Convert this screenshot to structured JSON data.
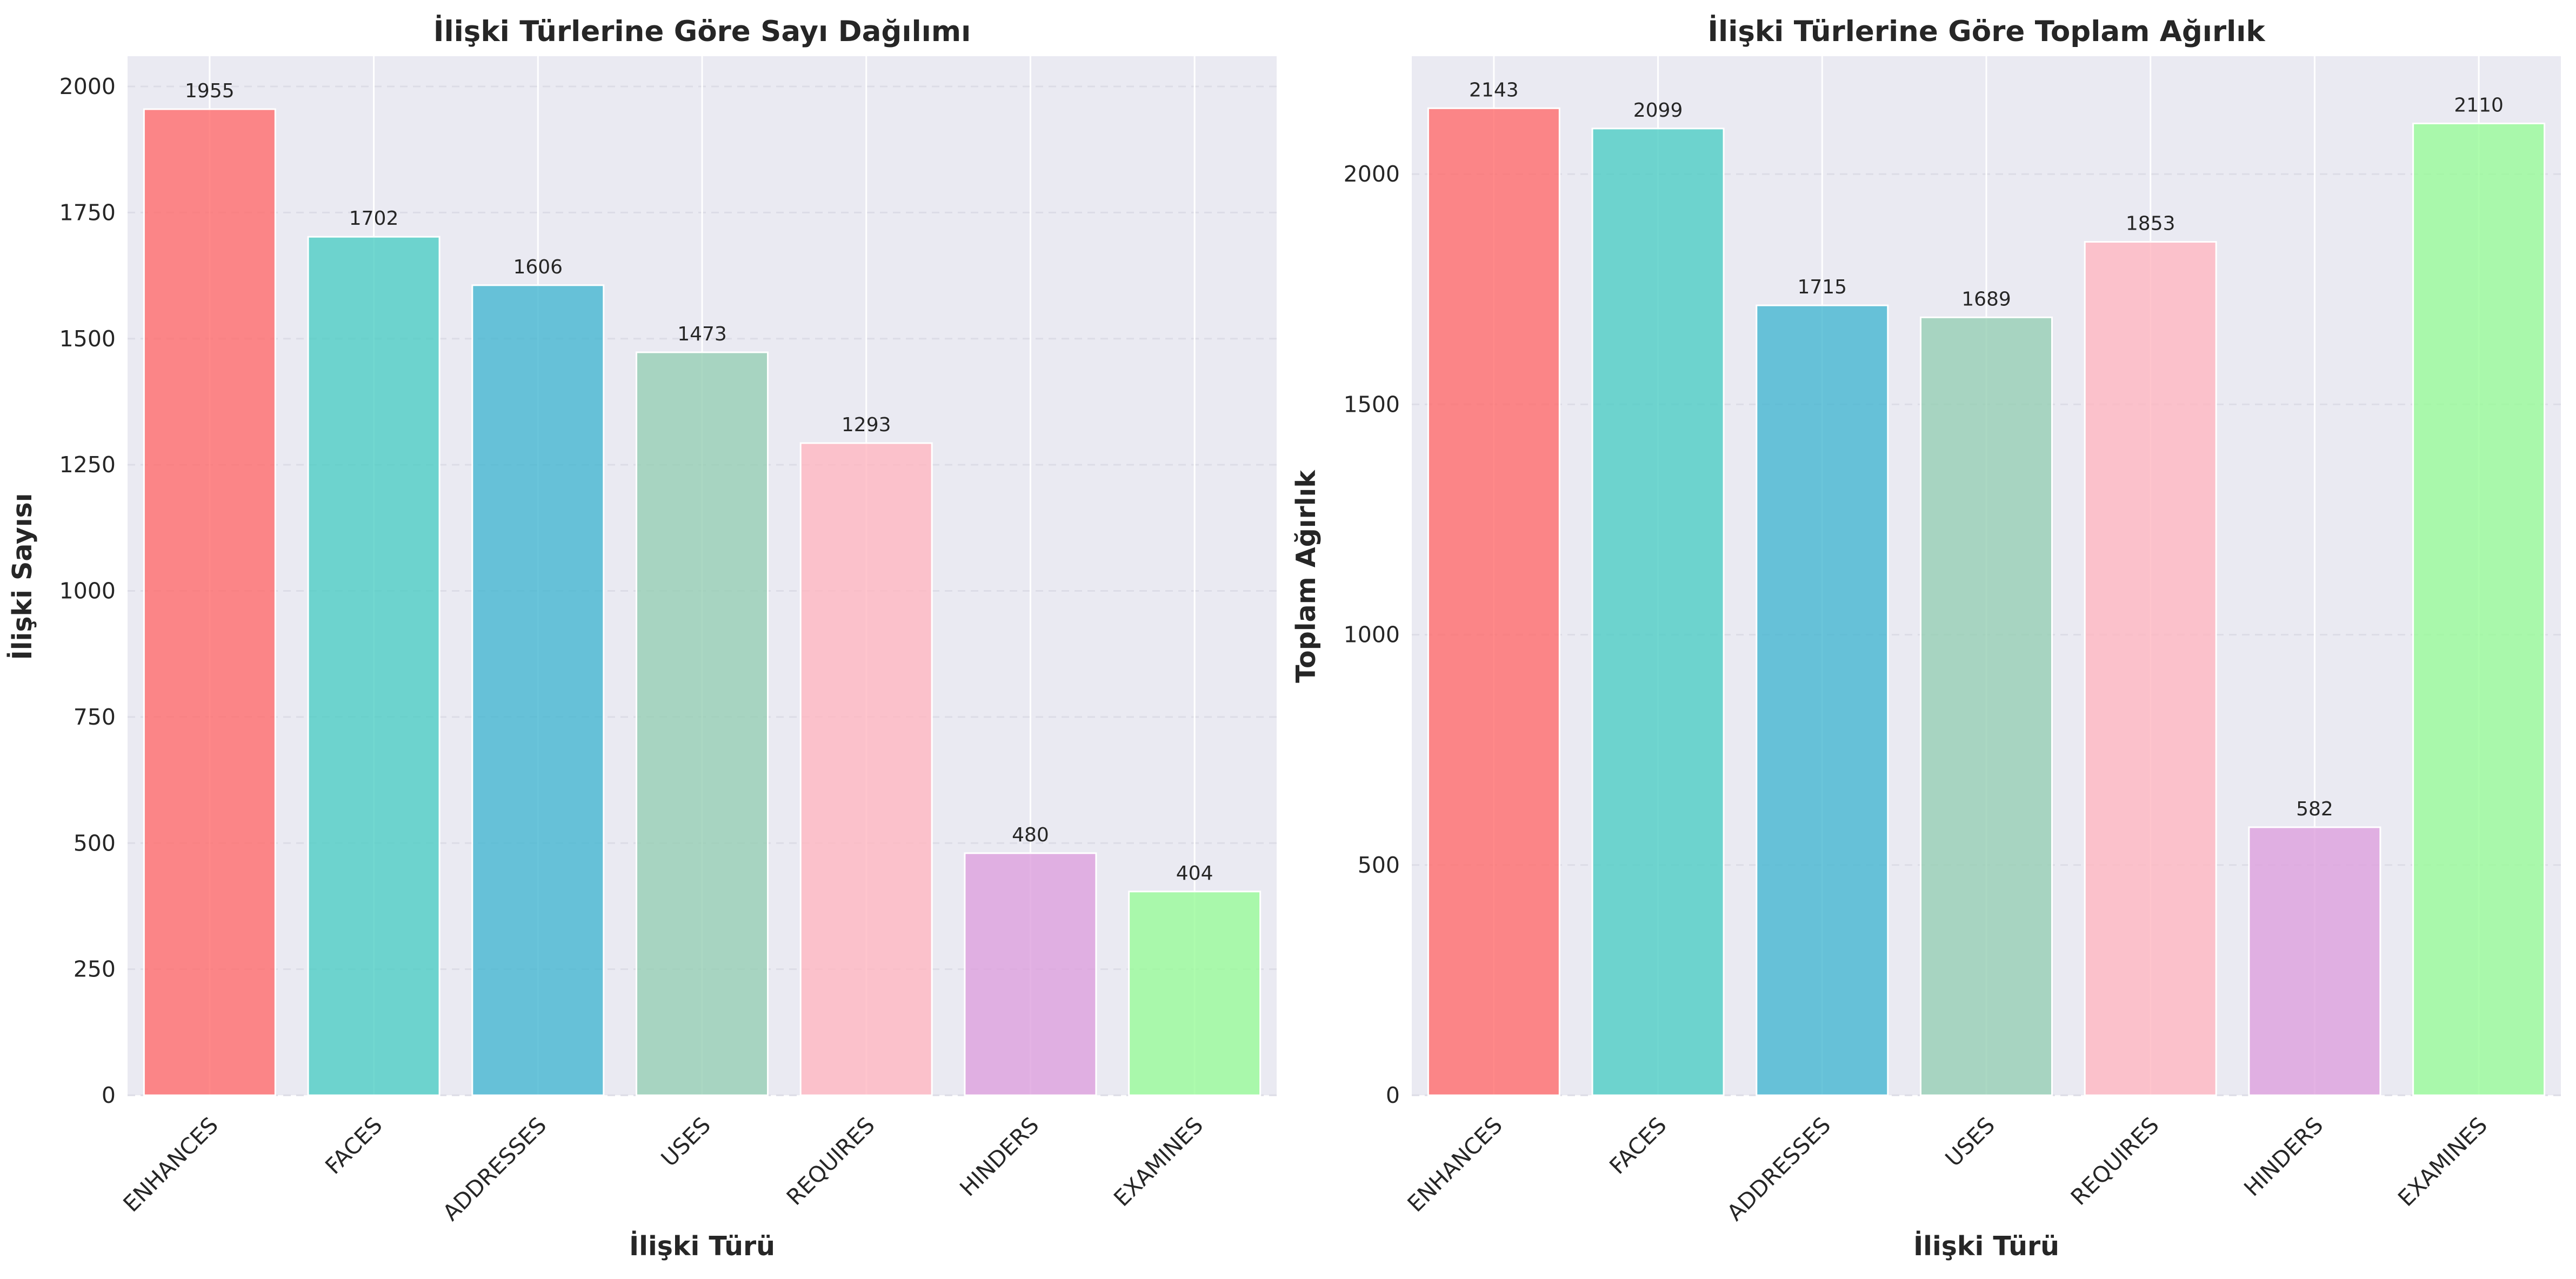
{
  "chart_data": [
    {
      "type": "bar",
      "title": "İlişki Türlerine Göre Sayı Dağılımı",
      "xlabel": "İlişki Türü",
      "ylabel": "İlişki Sayısı",
      "categories": [
        "ENHANCES",
        "FACES",
        "ADDRESSES",
        "USES",
        "REQUIRES",
        "HINDERS",
        "EXAMINES"
      ],
      "values": [
        1955,
        1702,
        1606,
        1473,
        1293,
        480,
        404
      ],
      "ylim": [
        0,
        2060
      ],
      "yticks": [
        0,
        250,
        500,
        750,
        1000,
        1250,
        1500,
        1750,
        2000
      ],
      "colors": [
        "#FF6B6B",
        "#4ECDC4",
        "#45B7D1",
        "#96CEB4",
        "#FFB6C1",
        "#DDA0DD",
        "#98FB98"
      ],
      "grid": true,
      "background": "#EAEAF2"
    },
    {
      "type": "bar",
      "title": "İlişki Türlerine Göre Toplam Ağırlık",
      "xlabel": "İlişki Türü",
      "ylabel": "Toplam Ağırlık",
      "categories": [
        "ENHANCES",
        "FACES",
        "ADDRESSES",
        "USES",
        "REQUIRES",
        "HINDERS",
        "EXAMINES"
      ],
      "values": [
        2143,
        2099,
        1715,
        1689,
        1853,
        582,
        2110
      ],
      "ylim": [
        0,
        2256
      ],
      "yticks": [
        0,
        500,
        1000,
        1500,
        2000
      ],
      "colors": [
        "#FF6B6B",
        "#4ECDC4",
        "#45B7D1",
        "#96CEB4",
        "#FFB6C1",
        "#DDA0DD",
        "#98FB98"
      ],
      "grid": true,
      "background": "#EAEAF2"
    }
  ]
}
